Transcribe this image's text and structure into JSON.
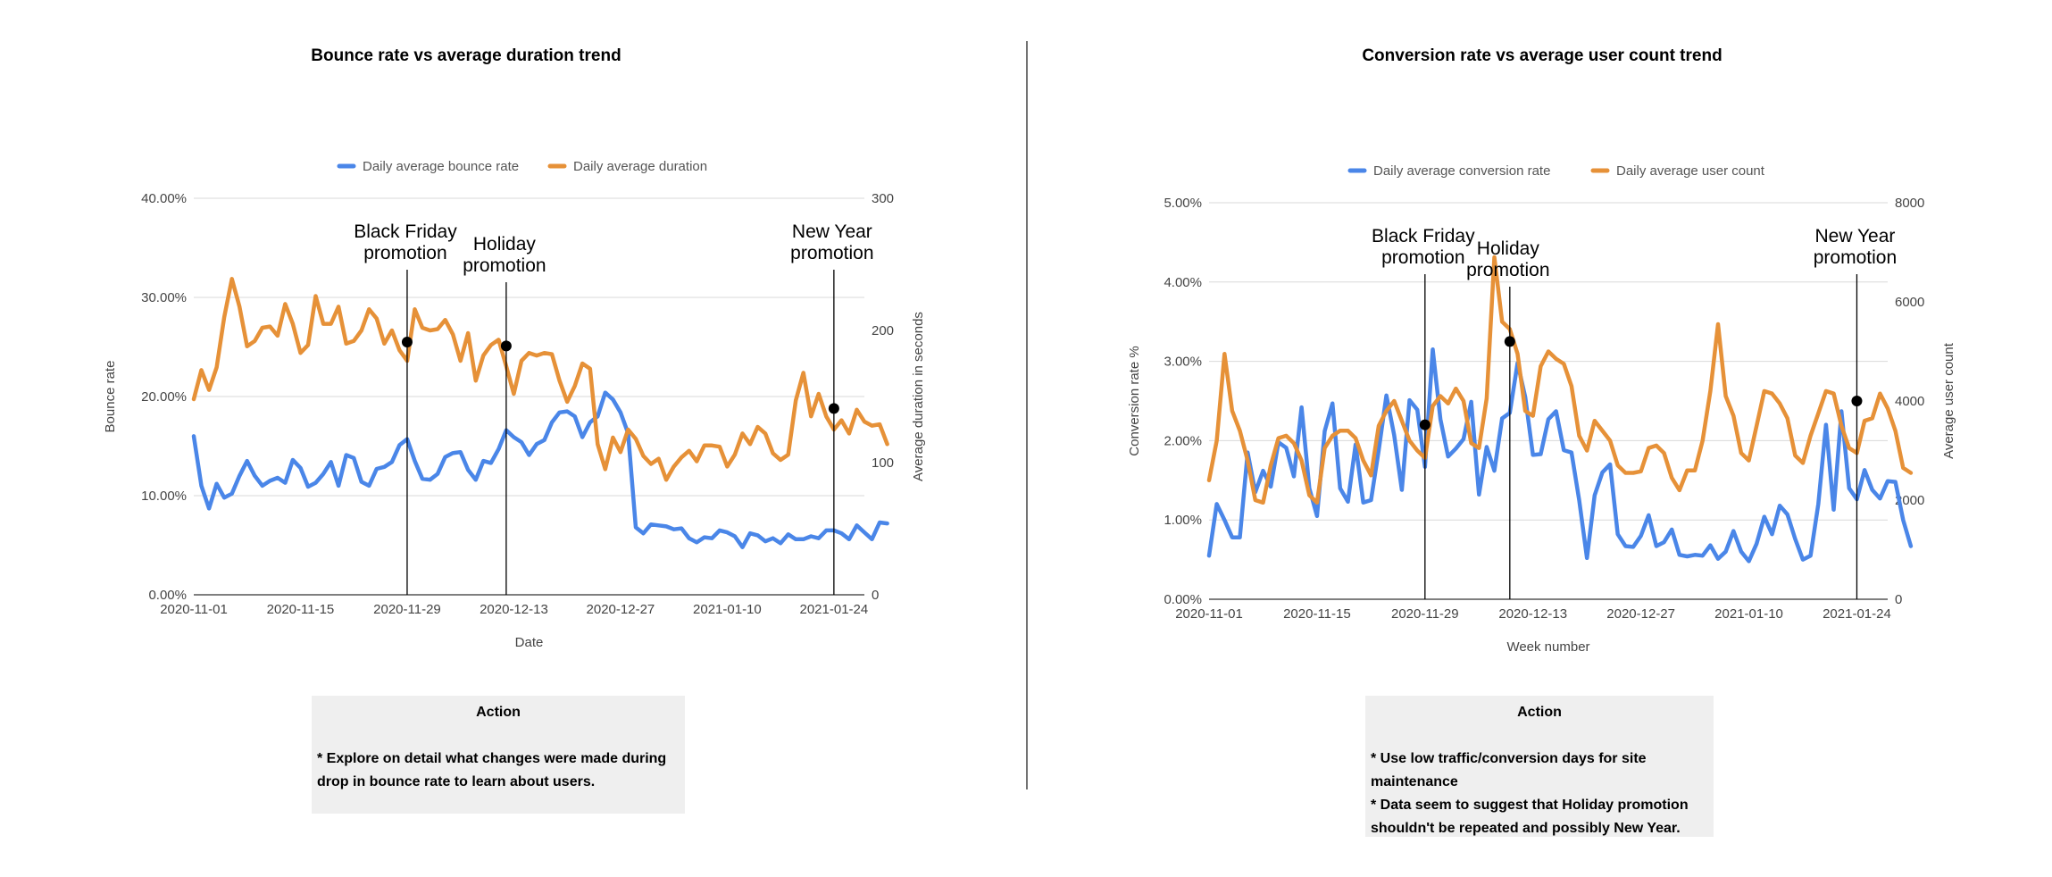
{
  "colors": {
    "blue": "#4a86e8",
    "orange": "#e69138",
    "grid": "#d9d9d9",
    "divider": "#444444"
  },
  "chart_data": [
    {
      "type": "line",
      "title": "Bounce rate vs average duration trend",
      "xlabel": "Date",
      "ylabel_left": "Bounce rate",
      "ylabel_right": "Average duration in seconds",
      "x_start": "2020-11-01",
      "x_end": "2021-01-28",
      "x_ticks": [
        "2020-11-01",
        "2020-11-15",
        "2020-11-29",
        "2020-12-13",
        "2020-12-27",
        "2021-01-10",
        "2021-01-24"
      ],
      "y_left_ticks": [
        "0.00%",
        "10.00%",
        "20.00%",
        "30.00%",
        "40.00%"
      ],
      "y_left_lim": [
        0,
        40
      ],
      "y_right_ticks": [
        "0",
        "100",
        "200",
        "300"
      ],
      "y_right_lim": [
        0,
        300
      ],
      "legend_position": "top",
      "grid": true,
      "series": [
        {
          "name": "Daily average bounce rate",
          "color": "#4a86e8",
          "axis": "left",
          "values": [
            16.0,
            11.0,
            8.7,
            11.2,
            9.8,
            10.2,
            12.0,
            13.5,
            12.0,
            11.0,
            11.5,
            11.8,
            11.3,
            13.6,
            12.8,
            10.9,
            11.3,
            12.2,
            13.4,
            11.0,
            14.1,
            13.8,
            11.4,
            11.0,
            12.7,
            12.9,
            13.4,
            15.1,
            15.7,
            13.5,
            11.7,
            11.6,
            12.2,
            13.9,
            14.3,
            14.4,
            12.6,
            11.6,
            13.5,
            13.3,
            14.7,
            16.6,
            15.9,
            15.4,
            14.1,
            15.2,
            15.6,
            17.4,
            18.4,
            18.5,
            18.0,
            15.9,
            17.4,
            18.0,
            20.4,
            19.7,
            18.4,
            16.3,
            6.8,
            6.2,
            7.1,
            7.0,
            6.9,
            6.6,
            6.7,
            5.7,
            5.3,
            5.8,
            5.7,
            6.5,
            6.3,
            5.9,
            4.8,
            6.2,
            6.0,
            5.4,
            5.7,
            5.2,
            6.1,
            5.6,
            5.6,
            5.9,
            5.7,
            6.5,
            6.5,
            6.2,
            5.6,
            7.0,
            6.3,
            5.6,
            7.3,
            7.2
          ]
        },
        {
          "name": "Daily average duration",
          "color": "#e69138",
          "axis": "right",
          "values": [
            148,
            170,
            155,
            172,
            210,
            239,
            218,
            188,
            192,
            202,
            203,
            196,
            220,
            205,
            183,
            189,
            226,
            205,
            205,
            218,
            190,
            192,
            200,
            216,
            209,
            190,
            200,
            185,
            177,
            216,
            202,
            200,
            201,
            208,
            197,
            177,
            198,
            162,
            181,
            189,
            193,
            173,
            152,
            177,
            183,
            181,
            183,
            182,
            162,
            146,
            158,
            175,
            171,
            114,
            95,
            119,
            108,
            125,
            118,
            105,
            99,
            103,
            87,
            97,
            104,
            109,
            101,
            113,
            113,
            112,
            97,
            106,
            122,
            114,
            127,
            122,
            107,
            102,
            106,
            147,
            168,
            135,
            152,
            135,
            125,
            132,
            122,
            140,
            131,
            128,
            129,
            114
          ]
        }
      ],
      "annotations": [
        {
          "label_lines": [
            "Black Friday",
            "promotion"
          ],
          "date": "2020-11-29",
          "marker_value": 25.5,
          "marker_axis": "left"
        },
        {
          "label_lines": [
            "Holiday",
            "promotion"
          ],
          "date": "2020-12-12",
          "marker_value": 25.1,
          "marker_axis": "left"
        },
        {
          "label_lines": [
            "New Year",
            "promotion"
          ],
          "date": "2021-01-24",
          "marker_value": 18.8,
          "marker_axis": "left"
        }
      ]
    },
    {
      "type": "line",
      "title": "Conversion rate vs average user count trend",
      "xlabel": "Week number",
      "ylabel_left": "Conversion rate %",
      "ylabel_right": "Average user count",
      "x_start": "2020-11-01",
      "x_end": "2021-01-28",
      "x_ticks": [
        "2020-11-01",
        "2020-11-15",
        "2020-11-29",
        "2020-12-13",
        "2020-12-27",
        "2021-01-10",
        "2021-01-24"
      ],
      "y_left_ticks": [
        "0.00%",
        "1.00%",
        "2.00%",
        "3.00%",
        "4.00%",
        "5.00%"
      ],
      "y_left_lim": [
        0,
        5
      ],
      "y_right_ticks": [
        "0",
        "2000",
        "4000",
        "6000",
        "8000"
      ],
      "y_right_lim": [
        0,
        8000
      ],
      "legend_position": "top",
      "grid": true,
      "series": [
        {
          "name": "Daily average conversion rate",
          "color": "#4a86e8",
          "axis": "left",
          "values": [
            0.55,
            1.2,
            1.0,
            0.78,
            0.78,
            1.85,
            1.35,
            1.62,
            1.42,
            1.98,
            1.91,
            1.55,
            2.42,
            1.4,
            1.05,
            2.12,
            2.47,
            1.4,
            1.23,
            1.95,
            1.22,
            1.25,
            1.88,
            2.57,
            2.07,
            1.38,
            2.51,
            2.39,
            1.67,
            3.15,
            2.27,
            1.8,
            1.9,
            2.02,
            2.49,
            1.32,
            1.92,
            1.62,
            2.28,
            2.35,
            2.98,
            2.55,
            1.82,
            1.83,
            2.27,
            2.37,
            1.88,
            1.85,
            1.25,
            0.52,
            1.31,
            1.6,
            1.7,
            0.82,
            0.67,
            0.66,
            0.8,
            1.06,
            0.67,
            0.72,
            0.88,
            0.56,
            0.54,
            0.56,
            0.55,
            0.68,
            0.51,
            0.6,
            0.86,
            0.6,
            0.48,
            0.7,
            1.04,
            0.82,
            1.18,
            1.07,
            0.76,
            0.5,
            0.55,
            1.2,
            2.2,
            1.13,
            2.37,
            1.4,
            1.26,
            1.63,
            1.38,
            1.27,
            1.49,
            1.48,
            1.0,
            0.67
          ]
        },
        {
          "name": "Daily average user count",
          "color": "#e69138",
          "axis": "right",
          "values": [
            2400,
            3200,
            4950,
            3800,
            3400,
            2800,
            2000,
            1950,
            2700,
            3250,
            3300,
            3150,
            2800,
            2100,
            1950,
            3050,
            3300,
            3400,
            3400,
            3250,
            2800,
            2500,
            3500,
            3800,
            4000,
            3600,
            3200,
            3000,
            2850,
            3900,
            4100,
            3950,
            4250,
            4000,
            3150,
            3050,
            4050,
            6900,
            5600,
            5450,
            4950,
            3800,
            3700,
            4700,
            5000,
            4850,
            4750,
            4300,
            3300,
            3000,
            3600,
            3400,
            3200,
            2700,
            2550,
            2550,
            2580,
            3050,
            3100,
            2950,
            2450,
            2200,
            2600,
            2600,
            3200,
            4200,
            5550,
            4100,
            3700,
            2950,
            2800,
            3500,
            4200,
            4150,
            3950,
            3650,
            2900,
            2750,
            3300,
            3750,
            4200,
            4150,
            3500,
            3050,
            2950,
            3600,
            3650,
            4150,
            3850,
            3400,
            2650,
            2550
          ]
        }
      ],
      "annotations": [
        {
          "label_lines": [
            "Black Friday",
            "promotion"
          ],
          "date": "2020-11-29",
          "marker_value": 2.2,
          "marker_axis": "left"
        },
        {
          "label_lines": [
            "Holiday",
            "promotion"
          ],
          "date": "2020-12-10",
          "marker_value": 3.25,
          "marker_axis": "left"
        },
        {
          "label_lines": [
            "New Year",
            "promotion"
          ],
          "date": "2021-01-24",
          "marker_value": 2.5,
          "marker_axis": "left"
        }
      ]
    }
  ],
  "actions": [
    {
      "title": "Action",
      "lines": [
        "* Explore on detail what changes were made during",
        "drop in bounce rate to learn about users."
      ]
    },
    {
      "title": "Action",
      "lines": [
        "* Use low traffic/conversion days for site",
        "maintenance",
        "* Data seem to suggest that Holiday promotion",
        "shouldn't be repeated and possibly New Year."
      ]
    }
  ]
}
